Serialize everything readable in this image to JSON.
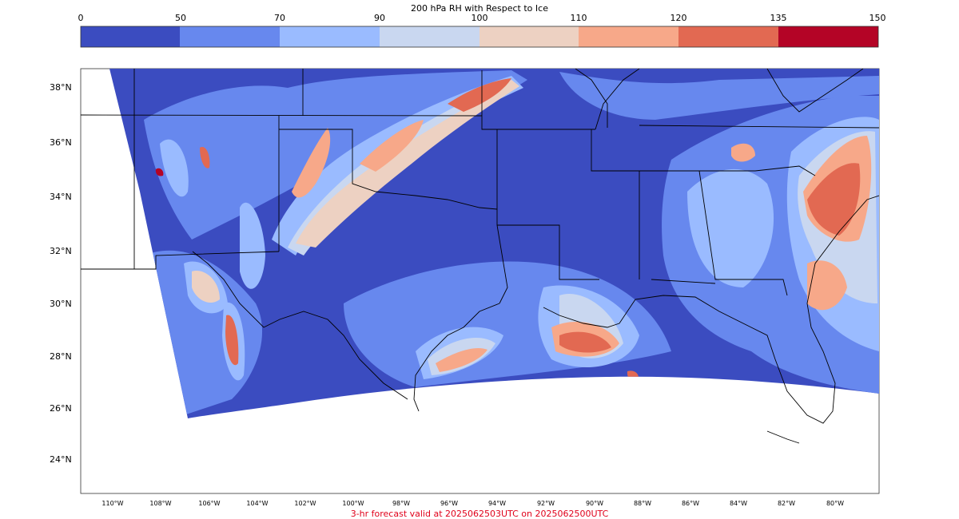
{
  "colorbar": {
    "title": "200 hPa RH with Respect to Ice",
    "ticks": [
      "0",
      "50",
      "70",
      "90",
      "100",
      "110",
      "120",
      "135",
      "150"
    ],
    "colors": [
      "#3b4cc0",
      "#6788ee",
      "#9abbff",
      "#c9d7f0",
      "#edd1c2",
      "#f7a889",
      "#e26952",
      "#b40426"
    ]
  },
  "map": {
    "lat_labels": [
      "38°N",
      "36°N",
      "34°N",
      "32°N",
      "30°N",
      "28°N",
      "26°N",
      "24°N"
    ],
    "lon_labels": [
      "110°W",
      "108°W",
      "106°W",
      "104°W",
      "102°W",
      "100°W",
      "98°W",
      "96°W",
      "94°W",
      "92°W",
      "90°W",
      "88°W",
      "86°W",
      "84°W",
      "82°W",
      "80°W"
    ],
    "region": "Southern United States / Gulf of Mexico",
    "field": "RH with respect to ice, 200 hPa"
  },
  "footer": {
    "text": "3-hr forecast valid at 2025062503UTC on 2025062500UTC",
    "color": "#e0001a"
  }
}
